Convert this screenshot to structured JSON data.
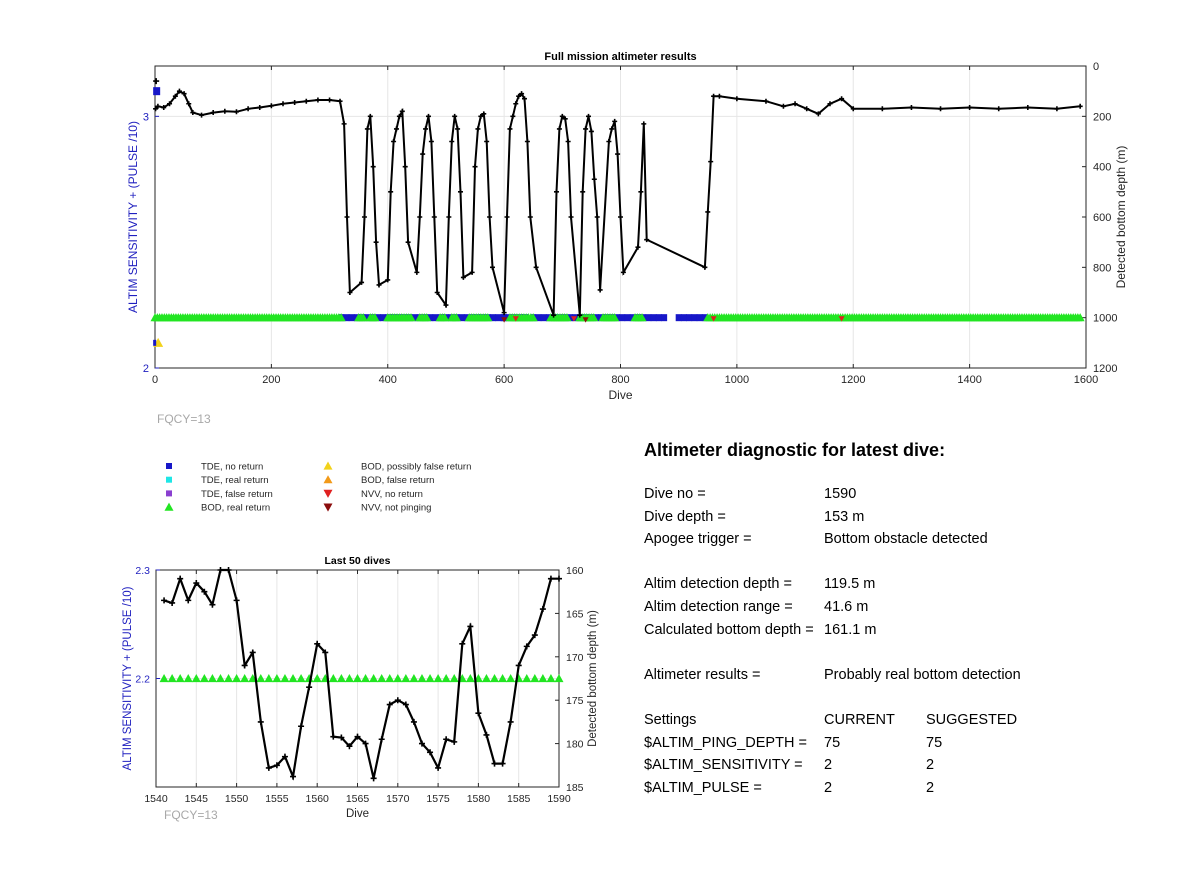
{
  "colors": {
    "left_axis": "#1f1fbf",
    "tde_no_return": "#1717c8",
    "tde_real_return": "#1ee6e6",
    "tde_false_return": "#8a3fd0",
    "bod_real_return": "#22e522",
    "bod_possibly_false": "#f2d21a",
    "bod_false_return": "#f29a1a",
    "nvv_no_return": "#e02020",
    "nvv_not_pinging": "#8b0d0d",
    "grid": "#e6e6e6",
    "fqcy_text": "#a8a8a8"
  },
  "top_chart_labels": {
    "fqcy": "FQCY=13"
  },
  "bottom_chart_labels": {
    "fqcy": "FQCY=13"
  },
  "legend": [
    {
      "label": "TDE, no return",
      "marker": "square",
      "color_key": "tde_no_return"
    },
    {
      "label": "TDE, real return",
      "marker": "square",
      "color_key": "tde_real_return"
    },
    {
      "label": "TDE, false return",
      "marker": "square",
      "color_key": "tde_false_return"
    },
    {
      "label": "BOD, real return",
      "marker": "triangle-up",
      "color_key": "bod_real_return"
    },
    {
      "label": "BOD, possibly false return",
      "marker": "triangle-up",
      "color_key": "bod_possibly_false"
    },
    {
      "label": "BOD, false return",
      "marker": "triangle-up",
      "color_key": "bod_false_return"
    },
    {
      "label": "NVV, no return",
      "marker": "triangle-down",
      "color_key": "nvv_no_return"
    },
    {
      "label": "NVV, not pinging",
      "marker": "triangle-down",
      "color_key": "nvv_not_pinging"
    }
  ],
  "diagnostic": {
    "title": "Altimeter diagnostic for latest dive:",
    "dive_no_label": "Dive no =",
    "dive_no": "1590",
    "dive_depth_label": "Dive depth =",
    "dive_depth": "153 m",
    "apogee_label": "Apogee trigger =",
    "apogee": "Bottom obstacle detected",
    "det_depth_label": "Altim detection depth =",
    "det_depth": "119.5 m",
    "det_range_label": "Altim detection range =",
    "det_range": "41.6 m",
    "calc_depth_label": "Calculated bottom depth =",
    "calc_depth": "161.1 m",
    "results_label": "Altimeter results =",
    "results": "Probably real bottom detection",
    "settings_label": "Settings",
    "current_label": "CURRENT",
    "suggested_label": "SUGGESTED",
    "settings": [
      {
        "name": "$ALTIM_PING_DEPTH =",
        "current": "75",
        "suggested": "75"
      },
      {
        "name": "$ALTIM_SENSITIVITY =",
        "current": "2",
        "suggested": "2"
      },
      {
        "name": "$ALTIM_PULSE =",
        "current": "2",
        "suggested": "2"
      }
    ]
  },
  "chart_data": [
    {
      "type": "scatter",
      "title": "Full mission altimeter results",
      "xlabel": "Dive",
      "ylabel": "ALTIM SENSITIVITY + (PULSE /10)",
      "y2label": "Detected bottom depth (m)",
      "xlim": [
        0,
        1600
      ],
      "ylim": [
        2,
        3.2
      ],
      "y2lim": [
        1200,
        0
      ],
      "y2_reversed": true,
      "grid": true,
      "xticks": [
        "0",
        "200",
        "400",
        "600",
        "800",
        "1000",
        "1200",
        "1400",
        "1600"
      ],
      "yticks": [
        "2",
        "3"
      ],
      "y2ticks": [
        "0",
        "200",
        "400",
        "600",
        "800",
        "1000",
        "1200"
      ],
      "depth_series": {
        "name": "Detected bottom depth",
        "points": [
          [
            1,
            170
          ],
          [
            5,
            160
          ],
          [
            15,
            165
          ],
          [
            25,
            150
          ],
          [
            35,
            120
          ],
          [
            42,
            100
          ],
          [
            50,
            110
          ],
          [
            58,
            150
          ],
          [
            65,
            185
          ],
          [
            80,
            195
          ],
          [
            100,
            185
          ],
          [
            120,
            180
          ],
          [
            140,
            182
          ],
          [
            160,
            170
          ],
          [
            180,
            165
          ],
          [
            200,
            158
          ],
          [
            220,
            150
          ],
          [
            240,
            145
          ],
          [
            260,
            140
          ],
          [
            280,
            135
          ],
          [
            300,
            135
          ],
          [
            318,
            140
          ],
          [
            325,
            230
          ],
          [
            330,
            600
          ],
          [
            335,
            900
          ],
          [
            355,
            860
          ],
          [
            360,
            600
          ],
          [
            365,
            250
          ],
          [
            370,
            200
          ],
          [
            375,
            400
          ],
          [
            380,
            700
          ],
          [
            385,
            870
          ],
          [
            400,
            850
          ],
          [
            405,
            500
          ],
          [
            410,
            300
          ],
          [
            415,
            250
          ],
          [
            420,
            200
          ],
          [
            425,
            180
          ],
          [
            430,
            400
          ],
          [
            435,
            700
          ],
          [
            450,
            820
          ],
          [
            455,
            600
          ],
          [
            460,
            350
          ],
          [
            465,
            250
          ],
          [
            470,
            200
          ],
          [
            475,
            300
          ],
          [
            480,
            600
          ],
          [
            485,
            900
          ],
          [
            500,
            950
          ],
          [
            505,
            600
          ],
          [
            510,
            300
          ],
          [
            515,
            200
          ],
          [
            520,
            250
          ],
          [
            525,
            500
          ],
          [
            530,
            840
          ],
          [
            545,
            820
          ],
          [
            550,
            400
          ],
          [
            555,
            250
          ],
          [
            560,
            200
          ],
          [
            565,
            190
          ],
          [
            570,
            300
          ],
          [
            575,
            600
          ],
          [
            580,
            800
          ],
          [
            600,
            980
          ],
          [
            605,
            600
          ],
          [
            610,
            250
          ],
          [
            615,
            200
          ],
          [
            620,
            150
          ],
          [
            625,
            120
          ],
          [
            630,
            110
          ],
          [
            635,
            130
          ],
          [
            640,
            300
          ],
          [
            645,
            600
          ],
          [
            655,
            800
          ],
          [
            685,
            990
          ],
          [
            690,
            500
          ],
          [
            695,
            250
          ],
          [
            700,
            200
          ],
          [
            705,
            210
          ],
          [
            710,
            300
          ],
          [
            715,
            600
          ],
          [
            730,
            990
          ],
          [
            735,
            500
          ],
          [
            740,
            250
          ],
          [
            745,
            200
          ],
          [
            750,
            260
          ],
          [
            755,
            450
          ],
          [
            760,
            600
          ],
          [
            765,
            890
          ],
          [
            780,
            300
          ],
          [
            785,
            250
          ],
          [
            790,
            220
          ],
          [
            795,
            350
          ],
          [
            800,
            600
          ],
          [
            805,
            820
          ],
          [
            830,
            720
          ],
          [
            835,
            500
          ],
          [
            840,
            230
          ],
          [
            845,
            690
          ],
          [
            945,
            800
          ],
          [
            950,
            580
          ],
          [
            955,
            380
          ],
          [
            960,
            120
          ],
          [
            970,
            120
          ],
          [
            1000,
            130
          ],
          [
            1050,
            140
          ],
          [
            1080,
            160
          ],
          [
            1100,
            150
          ],
          [
            1120,
            170
          ],
          [
            1140,
            190
          ],
          [
            1160,
            150
          ],
          [
            1180,
            130
          ],
          [
            1200,
            170
          ],
          [
            1250,
            170
          ],
          [
            1300,
            165
          ],
          [
            1350,
            170
          ],
          [
            1400,
            165
          ],
          [
            1450,
            170
          ],
          [
            1500,
            165
          ],
          [
            1550,
            170
          ],
          [
            1590,
            160
          ]
        ]
      },
      "marker_rows": {
        "tde_no_return_y": 2.2,
        "bod_real_return_y": 2.2,
        "bod_real_return_ranges": [
          [
            0,
            320
          ],
          [
            350,
            360
          ],
          [
            370,
            380
          ],
          [
            400,
            440
          ],
          [
            455,
            470
          ],
          [
            490,
            500
          ],
          [
            510,
            520
          ],
          [
            540,
            575
          ],
          [
            610,
            650
          ],
          [
            680,
            710
          ],
          [
            730,
            755
          ],
          [
            770,
            790
          ],
          [
            825,
            840
          ],
          [
            950,
            1590
          ]
        ],
        "tde_no_return_ranges": [
          [
            320,
            600
          ],
          [
            600,
            640
          ],
          [
            650,
            880
          ],
          [
            900,
            950
          ]
        ],
        "nvv_no_return_x": [
          620,
          720,
          960,
          1180
        ],
        "nvv_not_pinging_x": [
          600,
          740
        ],
        "outliers": [
          {
            "kind": "tde_no_return",
            "x": 2,
            "y": 3.1
          },
          {
            "kind": "bod_possibly_false",
            "x": 2,
            "y": 2.1
          },
          {
            "kind": "nvv_not_pinging",
            "x": 2,
            "y": 2.1
          },
          {
            "kind": "depth",
            "x": 2,
            "depth": 60
          }
        ]
      }
    },
    {
      "type": "line",
      "title": "Last 50 dives",
      "xlabel": "Dive",
      "ylabel": "ALTIM SENSITIVITY + (PULSE /10)",
      "y2label": "Detected bottom depth (m)",
      "xlim": [
        1540,
        1590
      ],
      "ylim": [
        2.1,
        2.3
      ],
      "y2lim": [
        185,
        160
      ],
      "y2_reversed": true,
      "grid": true,
      "xticks": [
        "1540",
        "1545",
        "1550",
        "1555",
        "1560",
        "1565",
        "1570",
        "1575",
        "1580",
        "1585",
        "1590"
      ],
      "yticks": [
        "2.2",
        "2.3"
      ],
      "y2ticks": [
        "160",
        "165",
        "170",
        "175",
        "180",
        "185"
      ],
      "depth_series": {
        "name": "Detected bottom depth",
        "points": [
          [
            1541,
            163.5
          ],
          [
            1542,
            163.8
          ],
          [
            1543,
            161.0
          ],
          [
            1544,
            163.5
          ],
          [
            1545,
            161.5
          ],
          [
            1546,
            162.5
          ],
          [
            1547,
            164.0
          ],
          [
            1548,
            160.0
          ],
          [
            1549,
            160.0
          ],
          [
            1550,
            163.5
          ],
          [
            1551,
            171.0
          ],
          [
            1552,
            169.5
          ],
          [
            1553,
            177.5
          ],
          [
            1554,
            182.8
          ],
          [
            1555,
            182.5
          ],
          [
            1556,
            181.5
          ],
          [
            1557,
            183.8
          ],
          [
            1558,
            178.0
          ],
          [
            1559,
            173.5
          ],
          [
            1560,
            168.5
          ],
          [
            1561,
            169.5
          ],
          [
            1562,
            179.2
          ],
          [
            1563,
            179.3
          ],
          [
            1564,
            180.3
          ],
          [
            1565,
            179.2
          ],
          [
            1566,
            180.0
          ],
          [
            1567,
            184.0
          ],
          [
            1568,
            179.5
          ],
          [
            1569,
            175.5
          ],
          [
            1570,
            175.0
          ],
          [
            1571,
            175.5
          ],
          [
            1572,
            177.5
          ],
          [
            1573,
            180.0
          ],
          [
            1574,
            181.0
          ],
          [
            1575,
            182.8
          ],
          [
            1576,
            179.5
          ],
          [
            1577,
            179.8
          ],
          [
            1578,
            168.5
          ],
          [
            1579,
            166.5
          ],
          [
            1580,
            176.5
          ],
          [
            1581,
            179.0
          ],
          [
            1582,
            182.3
          ],
          [
            1583,
            182.3
          ],
          [
            1584,
            177.5
          ],
          [
            1585,
            171.0
          ],
          [
            1586,
            168.8
          ],
          [
            1587,
            167.5
          ],
          [
            1588,
            164.5
          ],
          [
            1589,
            161.0
          ],
          [
            1590,
            161.0
          ]
        ]
      },
      "bod_real_return": {
        "y": 2.2,
        "x_start": 1541,
        "x_end": 1590
      }
    }
  ]
}
